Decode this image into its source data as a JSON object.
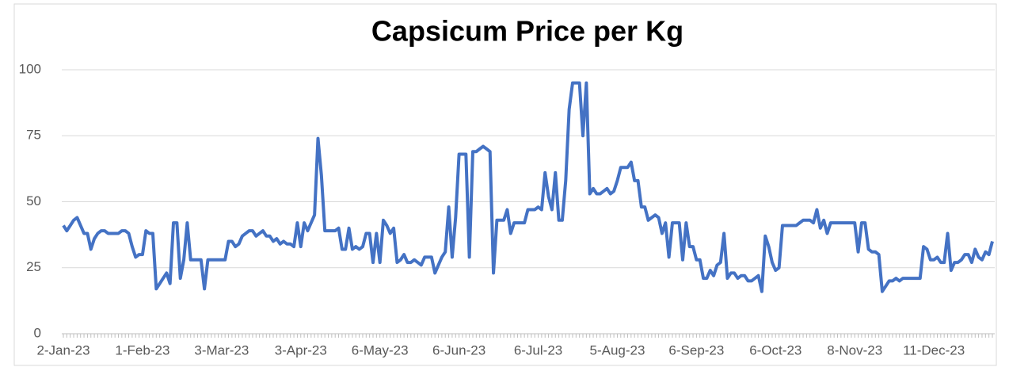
{
  "chart_data": {
    "type": "line",
    "title": "Capsicum Price per Kg",
    "categories": [
      "2-Jan-23",
      null,
      null,
      null,
      null,
      null,
      null,
      null,
      null,
      null,
      null,
      null,
      null,
      null,
      null,
      null,
      null,
      null,
      null,
      null,
      null,
      null,
      null,
      "1-Feb-23",
      null,
      null,
      null,
      null,
      null,
      null,
      null,
      null,
      null,
      null,
      null,
      null,
      null,
      null,
      null,
      null,
      null,
      null,
      null,
      null,
      null,
      null,
      "3-Mar-23",
      null,
      null,
      null,
      null,
      null,
      null,
      null,
      null,
      null,
      null,
      null,
      null,
      null,
      null,
      null,
      null,
      null,
      null,
      null,
      null,
      null,
      null,
      "3-Apr-23",
      null,
      null,
      null,
      null,
      null,
      null,
      null,
      null,
      null,
      null,
      null,
      null,
      null,
      null,
      null,
      null,
      null,
      null,
      null,
      null,
      null,
      null,
      "6-May-23",
      null,
      null,
      null,
      null,
      null,
      null,
      null,
      null,
      null,
      null,
      null,
      null,
      null,
      null,
      null,
      null,
      null,
      null,
      null,
      null,
      null,
      null,
      "6-Jun-23",
      null,
      null,
      null,
      null,
      null,
      null,
      null,
      null,
      null,
      null,
      null,
      null,
      null,
      null,
      null,
      null,
      null,
      null,
      null,
      null,
      null,
      null,
      "6-Jul-23",
      null,
      null,
      null,
      null,
      null,
      null,
      null,
      null,
      null,
      null,
      null,
      null,
      null,
      null,
      null,
      null,
      null,
      null,
      null,
      null,
      null,
      null,
      "5-Aug-23",
      null,
      null,
      null,
      null,
      null,
      null,
      null,
      null,
      null,
      null,
      null,
      null,
      null,
      null,
      null,
      null,
      null,
      null,
      null,
      null,
      null,
      null,
      "6-Sep-23",
      null,
      null,
      null,
      null,
      null,
      null,
      null,
      null,
      null,
      null,
      null,
      null,
      null,
      null,
      null,
      null,
      null,
      null,
      null,
      null,
      null,
      null,
      "6-Oct-23",
      null,
      null,
      null,
      null,
      null,
      null,
      null,
      null,
      null,
      null,
      null,
      null,
      null,
      null,
      null,
      null,
      null,
      null,
      null,
      null,
      null,
      null,
      "8-Nov-23",
      null,
      null,
      null,
      null,
      null,
      null,
      null,
      null,
      null,
      null,
      null,
      null,
      null,
      null,
      null,
      null,
      null,
      null,
      null,
      null,
      null,
      null,
      "11-Dec-23",
      null,
      null,
      null,
      null,
      null,
      null,
      null,
      null,
      null,
      null,
      null,
      null,
      null,
      null,
      null,
      null,
      null
    ],
    "series": [
      {
        "color": "#4472c4",
        "values": [
          41,
          39,
          41,
          43,
          44,
          41,
          38,
          38,
          32,
          36,
          38,
          39,
          39,
          38,
          38,
          38,
          38,
          39,
          39,
          38,
          33,
          29,
          30,
          30,
          39,
          38,
          38,
          17,
          19,
          21,
          23,
          19,
          42,
          42,
          21,
          28,
          42,
          28,
          28,
          28,
          28,
          17,
          28,
          28,
          28,
          28,
          28,
          28,
          35,
          35,
          33,
          34,
          37,
          38,
          39,
          39,
          37,
          38,
          39,
          37,
          37,
          35,
          36,
          34,
          35,
          34,
          34,
          33,
          42,
          33,
          42,
          39,
          42,
          45,
          74,
          60,
          39,
          39,
          39,
          39,
          40,
          32,
          32,
          40,
          32,
          33,
          32,
          33,
          38,
          38,
          27,
          38,
          27,
          43,
          41,
          38,
          40,
          27,
          28,
          30,
          27,
          27,
          28,
          27,
          26,
          29,
          29,
          29,
          23,
          26,
          29,
          31,
          48,
          29,
          44,
          68,
          68,
          68,
          29,
          69,
          69,
          70,
          71,
          70,
          69,
          23,
          43,
          43,
          43,
          47,
          38,
          42,
          42,
          42,
          42,
          47,
          47,
          47,
          48,
          47,
          61,
          52,
          47,
          61,
          43,
          43,
          58,
          85,
          95,
          95,
          95,
          75,
          95,
          53,
          55,
          53,
          53,
          54,
          55,
          53,
          54,
          58,
          63,
          63,
          63,
          65,
          58,
          58,
          48,
          48,
          43,
          44,
          45,
          44,
          38,
          42,
          29,
          42,
          42,
          42,
          28,
          42,
          33,
          33,
          28,
          28,
          21,
          21,
          24,
          22,
          26,
          27,
          38,
          21,
          23,
          23,
          21,
          22,
          22,
          20,
          20,
          21,
          22,
          16,
          37,
          33,
          27,
          24,
          25,
          41,
          41,
          41,
          41,
          41,
          42,
          43,
          43,
          43,
          42,
          47,
          40,
          43,
          38,
          42,
          42,
          42,
          42,
          42,
          42,
          42,
          42,
          31,
          42,
          42,
          32,
          31,
          31,
          30,
          16,
          18,
          20,
          20,
          21,
          20,
          21,
          21,
          21,
          21,
          21,
          21,
          33,
          32,
          28,
          28,
          29,
          27,
          27,
          38,
          24,
          27,
          27,
          28,
          30,
          30,
          27,
          32,
          29,
          28,
          31,
          30,
          35
        ]
      }
    ],
    "ylim": [
      0,
      100
    ],
    "yticks": [
      0,
      25,
      50,
      75,
      100
    ],
    "grid": true
  }
}
